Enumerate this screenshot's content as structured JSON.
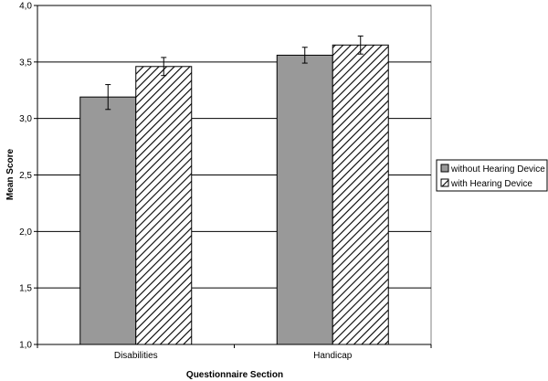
{
  "chart_data": {
    "type": "bar",
    "xlabel": "Questionnaire Section",
    "ylabel": "Mean Score",
    "ylim": [
      1.0,
      4.0
    ],
    "yticks": [
      "1,0",
      "1,5",
      "2,0",
      "2,5",
      "3,0",
      "3,5",
      "4,0"
    ],
    "ytick_values": [
      1.0,
      1.5,
      2.0,
      2.5,
      3.0,
      3.5,
      4.0
    ],
    "grid": true,
    "legend_position": "right",
    "categories": [
      "Disabilities",
      "Handicap"
    ],
    "series": [
      {
        "name": "without Hearing Device",
        "values": [
          3.19,
          3.56
        ],
        "error": [
          0.11,
          0.07
        ],
        "fill": "solid",
        "color": "#999999"
      },
      {
        "name": "with Hearing Device",
        "values": [
          3.46,
          3.65
        ],
        "error": [
          0.08,
          0.08
        ],
        "fill": "diagonal-hatch",
        "color": "#ffffff"
      }
    ]
  }
}
